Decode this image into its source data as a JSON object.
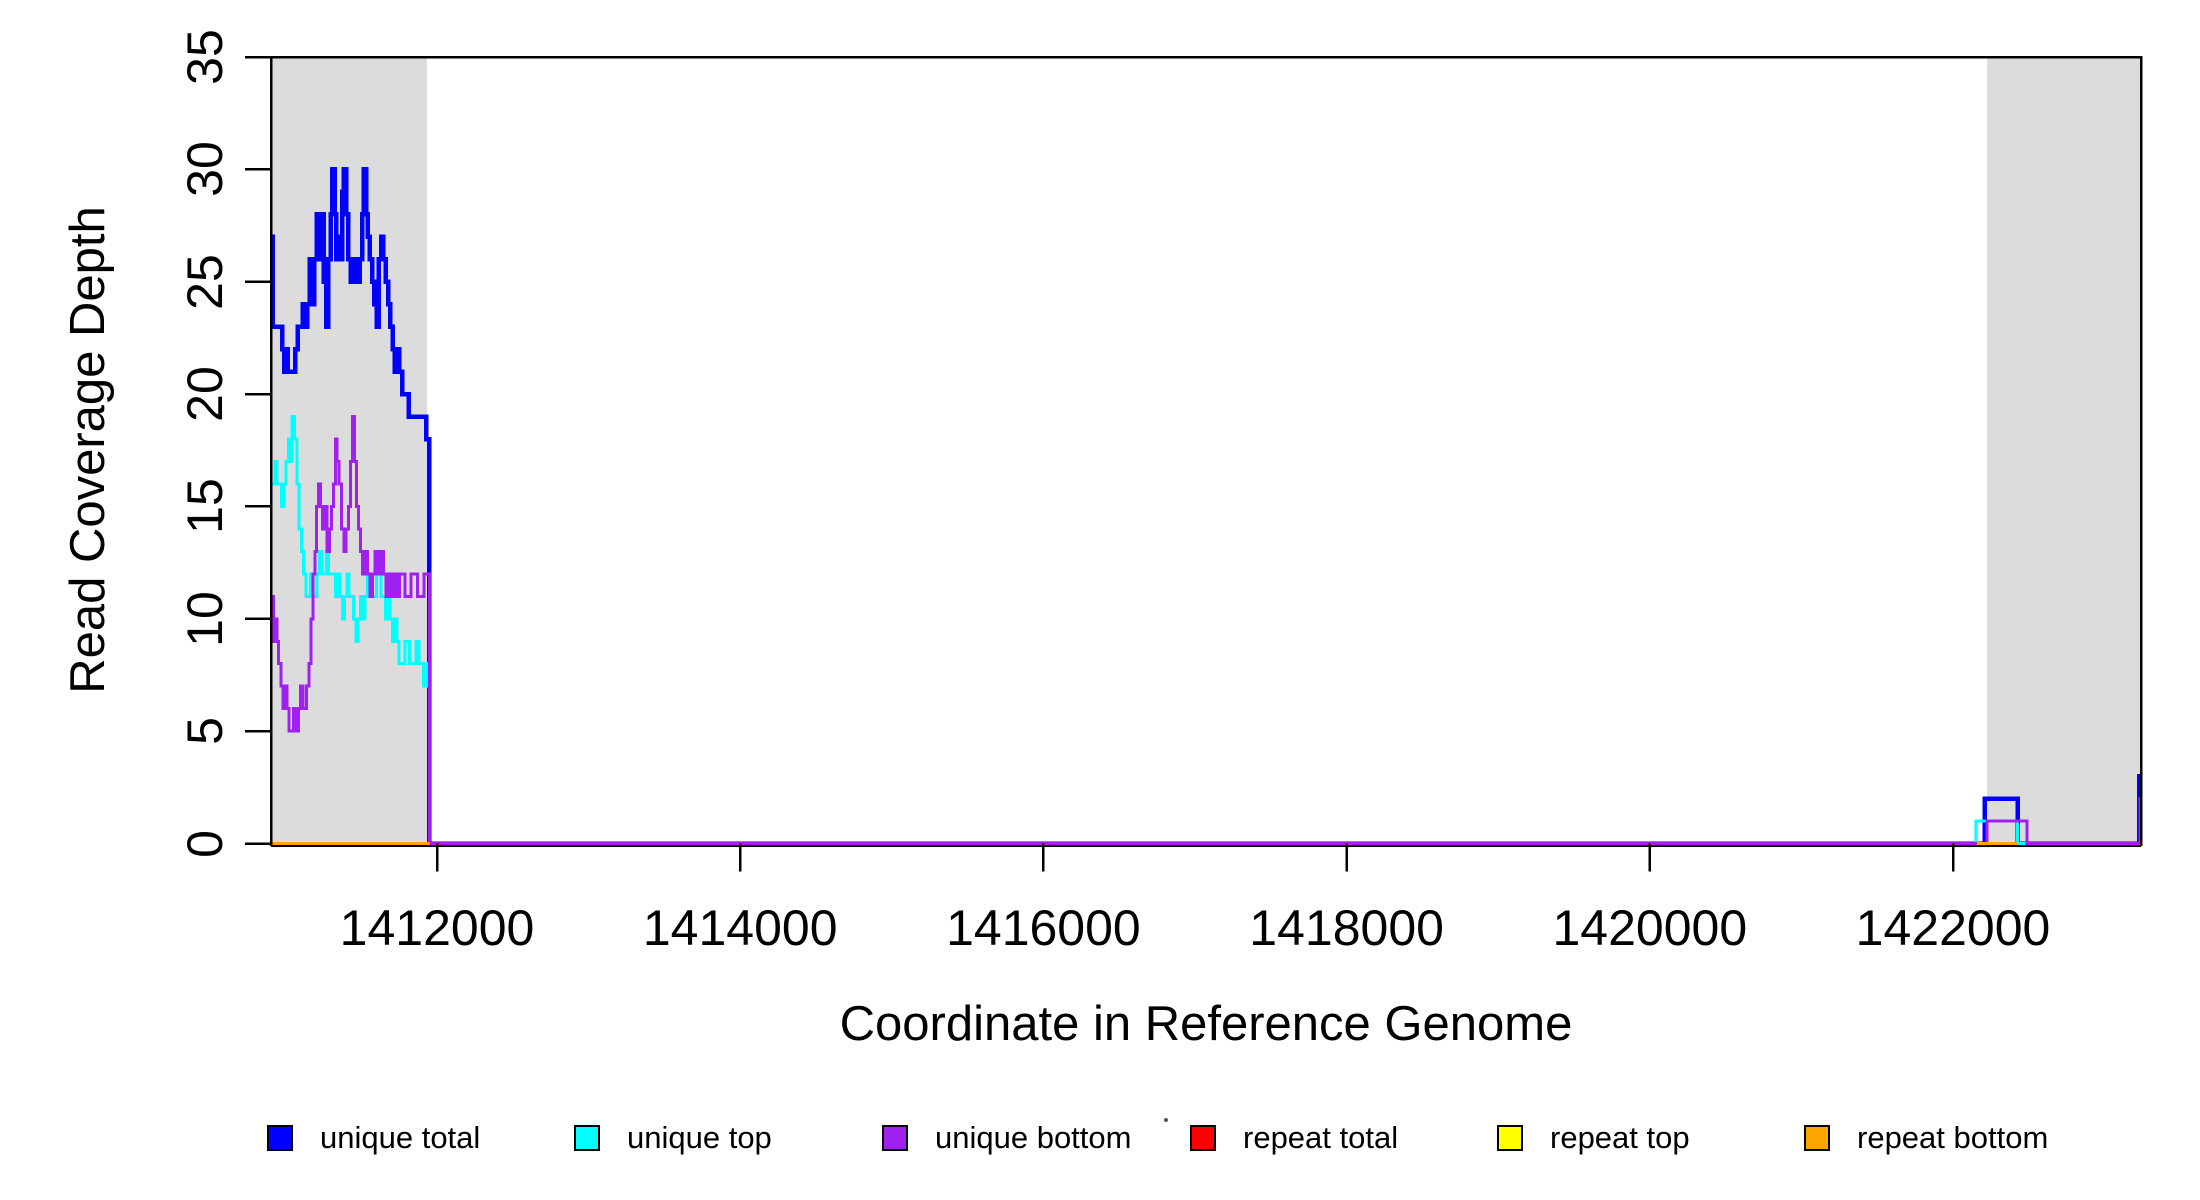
{
  "figure": {
    "x_title": "Coordinate in Reference Genome",
    "y_title": "Read Coverage Depth"
  },
  "axes": {
    "x_ticks": [
      "1412000",
      "1414000",
      "1416000",
      "1418000",
      "1420000",
      "1422000"
    ],
    "y_ticks": [
      "0",
      "5",
      "10",
      "15",
      "20",
      "25",
      "30",
      "35"
    ]
  },
  "legend": {
    "items": [
      {
        "label": "unique total",
        "color": "#0000FF"
      },
      {
        "label": "unique top",
        "color": "#00FFFF"
      },
      {
        "label": "unique bottom",
        "color": "#A020F0"
      },
      {
        "label": "repeat total",
        "color": "#FF0000"
      },
      {
        "label": "repeat top",
        "color": "#FFFF00"
      },
      {
        "label": "repeat bottom",
        "color": "#FFA500"
      }
    ]
  },
  "chart_data": {
    "type": "line",
    "subtype": "step-coverage",
    "title": "",
    "xlabel": "Coordinate in Reference Genome",
    "ylabel": "Read Coverage Depth",
    "xlim": [
      1410905,
      1423240
    ],
    "ylim": [
      0,
      35
    ],
    "grid": false,
    "legend_position": "bottom",
    "x_tick_values": [
      1412000,
      1414000,
      1416000,
      1418000,
      1420000,
      1422000
    ],
    "y_tick_values": [
      0,
      5,
      10,
      15,
      20,
      25,
      30,
      35
    ],
    "shaded_regions": [
      {
        "x0": 1410905,
        "x1": 1411934,
        "color": "#DCDCDC"
      },
      {
        "x0": 1422225,
        "x1": 1423240,
        "color": "#DCDCDC"
      }
    ],
    "series": [
      {
        "name": "unique total",
        "color": "#0000FF",
        "width": 4.5,
        "segments": [
          {
            "end": 1423240,
            "pts": [
              [
                1410905,
                27
              ],
              [
                1410918,
                23
              ],
              [
                1410980,
                22
              ],
              [
                1410993,
                21
              ],
              [
                1411008,
                22
              ],
              [
                1411016,
                21
              ],
              [
                1411066,
                22
              ],
              [
                1411082,
                23
              ],
              [
                1411113,
                24
              ],
              [
                1411129,
                23
              ],
              [
                1411144,
                24
              ],
              [
                1411160,
                26
              ],
              [
                1411175,
                24
              ],
              [
                1411191,
                26
              ],
              [
                1411206,
                28
              ],
              [
                1411222,
                26
              ],
              [
                1411237,
                28
              ],
              [
                1411253,
                25
              ],
              [
                1411268,
                23
              ],
              [
                1411284,
                26
              ],
              [
                1411299,
                28
              ],
              [
                1411309,
                30
              ],
              [
                1411324,
                28
              ],
              [
                1411334,
                26
              ],
              [
                1411350,
                27
              ],
              [
                1411365,
                26
              ],
              [
                1411375,
                29
              ],
              [
                1411386,
                30
              ],
              [
                1411401,
                28
              ],
              [
                1411416,
                26
              ],
              [
                1411431,
                25
              ],
              [
                1411447,
                26
              ],
              [
                1411477,
                25
              ],
              [
                1411492,
                26
              ],
              [
                1411507,
                28
              ],
              [
                1411517,
                30
              ],
              [
                1411532,
                28
              ],
              [
                1411542,
                27
              ],
              [
                1411557,
                26
              ],
              [
                1411572,
                25
              ],
              [
                1411587,
                24
              ],
              [
                1411602,
                23
              ],
              [
                1411617,
                26
              ],
              [
                1411632,
                27
              ],
              [
                1411647,
                26
              ],
              [
                1411662,
                25
              ],
              [
                1411677,
                24
              ],
              [
                1411692,
                23
              ],
              [
                1411707,
                22
              ],
              [
                1411722,
                21
              ],
              [
                1411737,
                22
              ],
              [
                1411752,
                21
              ],
              [
                1411770,
                20
              ],
              [
                1411815,
                19
              ],
              [
                1411930,
                18
              ],
              [
                1411950,
                0
              ],
              [
                1422210,
                2
              ],
              [
                1422427,
                0
              ],
              [
                1423228,
                3
              ]
            ]
          }
        ]
      },
      {
        "name": "unique top",
        "color": "#00FFFF",
        "width": 3,
        "segments": [
          {
            "end": 1423240,
            "pts": [
              [
                1410905,
                16
              ],
              [
                1410930,
                17
              ],
              [
                1410945,
                16
              ],
              [
                1410975,
                15
              ],
              [
                1410990,
                16
              ],
              [
                1411005,
                17
              ],
              [
                1411020,
                18
              ],
              [
                1411035,
                17
              ],
              [
                1411045,
                19
              ],
              [
                1411060,
                18
              ],
              [
                1411075,
                16
              ],
              [
                1411090,
                14
              ],
              [
                1411105,
                13
              ],
              [
                1411120,
                12
              ],
              [
                1411135,
                11
              ],
              [
                1411165,
                12
              ],
              [
                1411180,
                11
              ],
              [
                1411210,
                12
              ],
              [
                1411225,
                13
              ],
              [
                1411240,
                12
              ],
              [
                1411270,
                13
              ],
              [
                1411285,
                12
              ],
              [
                1411330,
                11
              ],
              [
                1411345,
                12
              ],
              [
                1411360,
                11
              ],
              [
                1411375,
                10
              ],
              [
                1411390,
                11
              ],
              [
                1411405,
                12
              ],
              [
                1411420,
                11
              ],
              [
                1411450,
                10
              ],
              [
                1411465,
                9
              ],
              [
                1411480,
                10
              ],
              [
                1411495,
                11
              ],
              [
                1411510,
                10
              ],
              [
                1411525,
                11
              ],
              [
                1411540,
                12
              ],
              [
                1411570,
                11
              ],
              [
                1411600,
                12
              ],
              [
                1411630,
                11
              ],
              [
                1411660,
                10
              ],
              [
                1411675,
                11
              ],
              [
                1411690,
                10
              ],
              [
                1411705,
                9
              ],
              [
                1411720,
                10
              ],
              [
                1411735,
                9
              ],
              [
                1411750,
                8
              ],
              [
                1411790,
                9
              ],
              [
                1411820,
                8
              ],
              [
                1411860,
                9
              ],
              [
                1411880,
                8
              ],
              [
                1411910,
                7
              ],
              [
                1411935,
                8
              ],
              [
                1411950,
                0
              ],
              [
                1422150,
                1
              ],
              [
                1422427,
                0
              ]
            ]
          }
        ]
      },
      {
        "name": "unique bottom",
        "color": "#A020F0",
        "width": 3,
        "segments": [
          {
            "end": 1423240,
            "pts": [
              [
                1410905,
                11
              ],
              [
                1410920,
                9
              ],
              [
                1410932,
                10
              ],
              [
                1410944,
                9
              ],
              [
                1410956,
                8
              ],
              [
                1410970,
                7
              ],
              [
                1410984,
                6
              ],
              [
                1410998,
                7
              ],
              [
                1411010,
                6
              ],
              [
                1411025,
                5
              ],
              [
                1411055,
                6
              ],
              [
                1411070,
                5
              ],
              [
                1411085,
                6
              ],
              [
                1411100,
                7
              ],
              [
                1411115,
                6
              ],
              [
                1411140,
                7
              ],
              [
                1411155,
                8
              ],
              [
                1411170,
                10
              ],
              [
                1411182,
                12
              ],
              [
                1411194,
                13
              ],
              [
                1411206,
                15
              ],
              [
                1411218,
                16
              ],
              [
                1411230,
                15
              ],
              [
                1411245,
                14
              ],
              [
                1411260,
                15
              ],
              [
                1411275,
                13
              ],
              [
                1411290,
                14
              ],
              [
                1411305,
                15
              ],
              [
                1411318,
                16
              ],
              [
                1411330,
                18
              ],
              [
                1411342,
                17
              ],
              [
                1411355,
                16
              ],
              [
                1411370,
                14
              ],
              [
                1411385,
                13
              ],
              [
                1411400,
                14
              ],
              [
                1411415,
                15
              ],
              [
                1411430,
                17
              ],
              [
                1411442,
                19
              ],
              [
                1411455,
                17
              ],
              [
                1411468,
                15
              ],
              [
                1411482,
                14
              ],
              [
                1411496,
                13
              ],
              [
                1411510,
                12
              ],
              [
                1411525,
                13
              ],
              [
                1411540,
                12
              ],
              [
                1411558,
                11
              ],
              [
                1411575,
                12
              ],
              [
                1411592,
                13
              ],
              [
                1411610,
                12
              ],
              [
                1411628,
                13
              ],
              [
                1411646,
                12
              ],
              [
                1411664,
                11
              ],
              [
                1411682,
                12
              ],
              [
                1411700,
                11
              ],
              [
                1411718,
                12
              ],
              [
                1411736,
                11
              ],
              [
                1411754,
                12
              ],
              [
                1411790,
                11
              ],
              [
                1411830,
                12
              ],
              [
                1411870,
                11
              ],
              [
                1411915,
                12
              ],
              [
                1411950,
                0
              ],
              [
                1422223,
                1
              ],
              [
                1422487,
                0
              ],
              [
                1423232,
                2
              ]
            ]
          }
        ]
      },
      {
        "name": "repeat total",
        "color": "#FF0000",
        "width": 3,
        "segments": [
          {
            "end": 1411950,
            "pts": [
              [
                1410905,
                0
              ]
            ]
          },
          {
            "end": 1422430,
            "pts": [
              [
                1422158,
                0
              ]
            ]
          }
        ]
      },
      {
        "name": "repeat top",
        "color": "#FFFF00",
        "width": 3,
        "segments": [
          {
            "end": 1411950,
            "pts": [
              [
                1410905,
                0
              ]
            ]
          },
          {
            "end": 1422430,
            "pts": [
              [
                1422158,
                0
              ]
            ]
          }
        ]
      },
      {
        "name": "repeat bottom",
        "color": "#FFA500",
        "width": 3,
        "segments": [
          {
            "end": 1411950,
            "pts": [
              [
                1410905,
                0
              ]
            ]
          },
          {
            "end": 1422430,
            "pts": [
              [
                1422158,
                0
              ]
            ]
          }
        ]
      }
    ]
  }
}
